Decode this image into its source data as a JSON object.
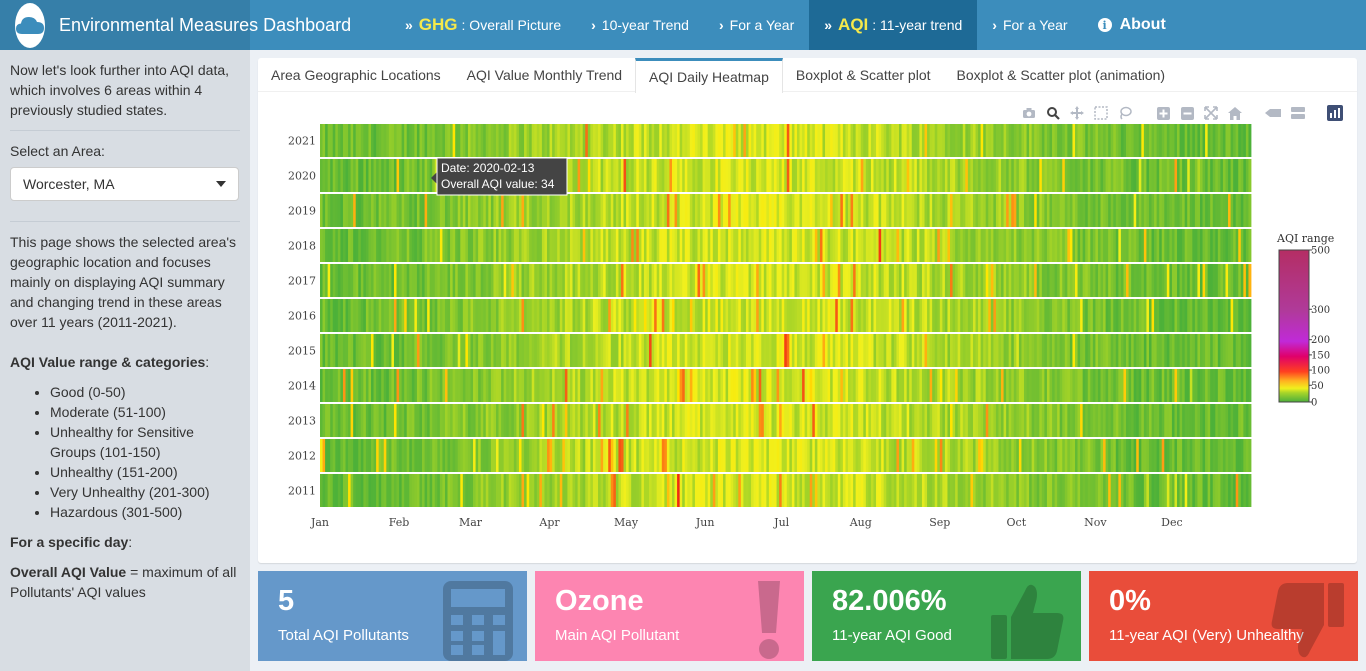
{
  "header": {
    "title": "Environmental Measures Dashboard",
    "nav": [
      {
        "big": "GHG",
        "label": ": Overall Picture"
      },
      {
        "label": "10-year Trend"
      },
      {
        "label": "For a Year"
      },
      {
        "big": "AQI",
        "label": ": 11-year trend"
      },
      {
        "label": "For a Year"
      },
      {
        "label": "About"
      }
    ]
  },
  "sidebar": {
    "intro": "Now let's look further into AQI data, which involves 6 areas within 4 previously studied states.",
    "select_label": "Select an Area:",
    "select_value": "Worcester, MA",
    "description": "This page shows the selected area's geographic location and focuses mainly on displaying AQI summary and changing trend in these areas over 11 years (2011-2021).",
    "range_title": "AQI Value range & categories",
    "categories": [
      "Good (0-50)",
      "Moderate (51-100)",
      "Unhealthy for Sensitive Groups (101-150)",
      "Unhealthy (151-200)",
      "Very Unhealthy (201-300)",
      "Hazardous (301-500)"
    ],
    "specific_day_title": "For a specific day",
    "overall_label": "Overall AQI Value",
    "overall_def": " = maximum of all Pollutants' AQI values"
  },
  "tabs": [
    "Area Geographic Locations",
    "AQI Value Monthly Trend",
    "AQI Daily Heatmap",
    "Boxplot & Scatter plot",
    "Boxplot & Scatter plot (animation)"
  ],
  "tooltip": {
    "date": "Date: 2020-02-13",
    "value": "Overall AQI value: 34"
  },
  "chart_data": {
    "type": "heatmap",
    "years": [
      "2021",
      "2020",
      "2019",
      "2018",
      "2017",
      "2016",
      "2015",
      "2014",
      "2013",
      "2012",
      "2011"
    ],
    "months": [
      "Jan",
      "Feb",
      "Mar",
      "Apr",
      "May",
      "Jun",
      "Jul",
      "Aug",
      "Sep",
      "Oct",
      "Nov",
      "Dec"
    ],
    "colorbar": {
      "title": "AQI range",
      "ticks": [
        500,
        300,
        200,
        150,
        100,
        50,
        0
      ],
      "range": [
        0,
        500
      ]
    }
  },
  "infoboxes": [
    {
      "value": "5",
      "label": "Total AQI Pollutants",
      "color": "#6598ca",
      "icon": "calculator-icon"
    },
    {
      "value": "Ozone",
      "label": "Main AQI Pollutant",
      "color": "#fd85b1",
      "icon": "exclamation-icon"
    },
    {
      "value": "82.006%",
      "label": "11-year AQI Good",
      "color": "#3aa54f",
      "icon": "thumbs-up-icon"
    },
    {
      "value": "0%",
      "label": "11-year AQI (Very) Unhealthy",
      "color": "#e94d3a",
      "icon": "thumbs-down-icon"
    }
  ]
}
